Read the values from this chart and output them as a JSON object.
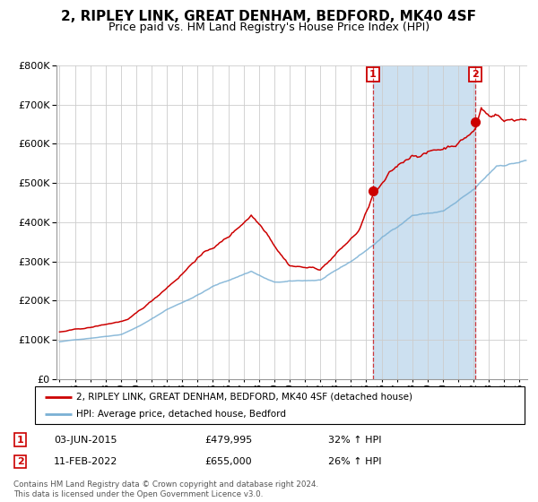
{
  "title": "2, RIPLEY LINK, GREAT DENHAM, BEDFORD, MK40 4SF",
  "subtitle": "Price paid vs. HM Land Registry's House Price Index (HPI)",
  "legend_label_red": "2, RIPLEY LINK, GREAT DENHAM, BEDFORD, MK40 4SF (detached house)",
  "legend_label_blue": "HPI: Average price, detached house, Bedford",
  "annotation1_label": "1",
  "annotation1_date": "03-JUN-2015",
  "annotation1_price": "£479,995",
  "annotation1_pct": "32% ↑ HPI",
  "annotation2_label": "2",
  "annotation2_date": "11-FEB-2022",
  "annotation2_price": "£655,000",
  "annotation2_pct": "26% ↑ HPI",
  "footer_line1": "Contains HM Land Registry data © Crown copyright and database right 2024.",
  "footer_line2": "This data is licensed under the Open Government Licence v3.0.",
  "sale1_x": 2015.42,
  "sale1_y": 479995,
  "sale2_x": 2022.12,
  "sale2_y": 655000,
  "red_color": "#cc0000",
  "blue_color": "#7ab0d4",
  "span_color": "#cce0f0",
  "grid_color": "#cccccc",
  "ylim": [
    0,
    800000
  ],
  "xlim_start": 1994.8,
  "xlim_end": 2025.5,
  "title_fontsize": 11,
  "subtitle_fontsize": 9
}
